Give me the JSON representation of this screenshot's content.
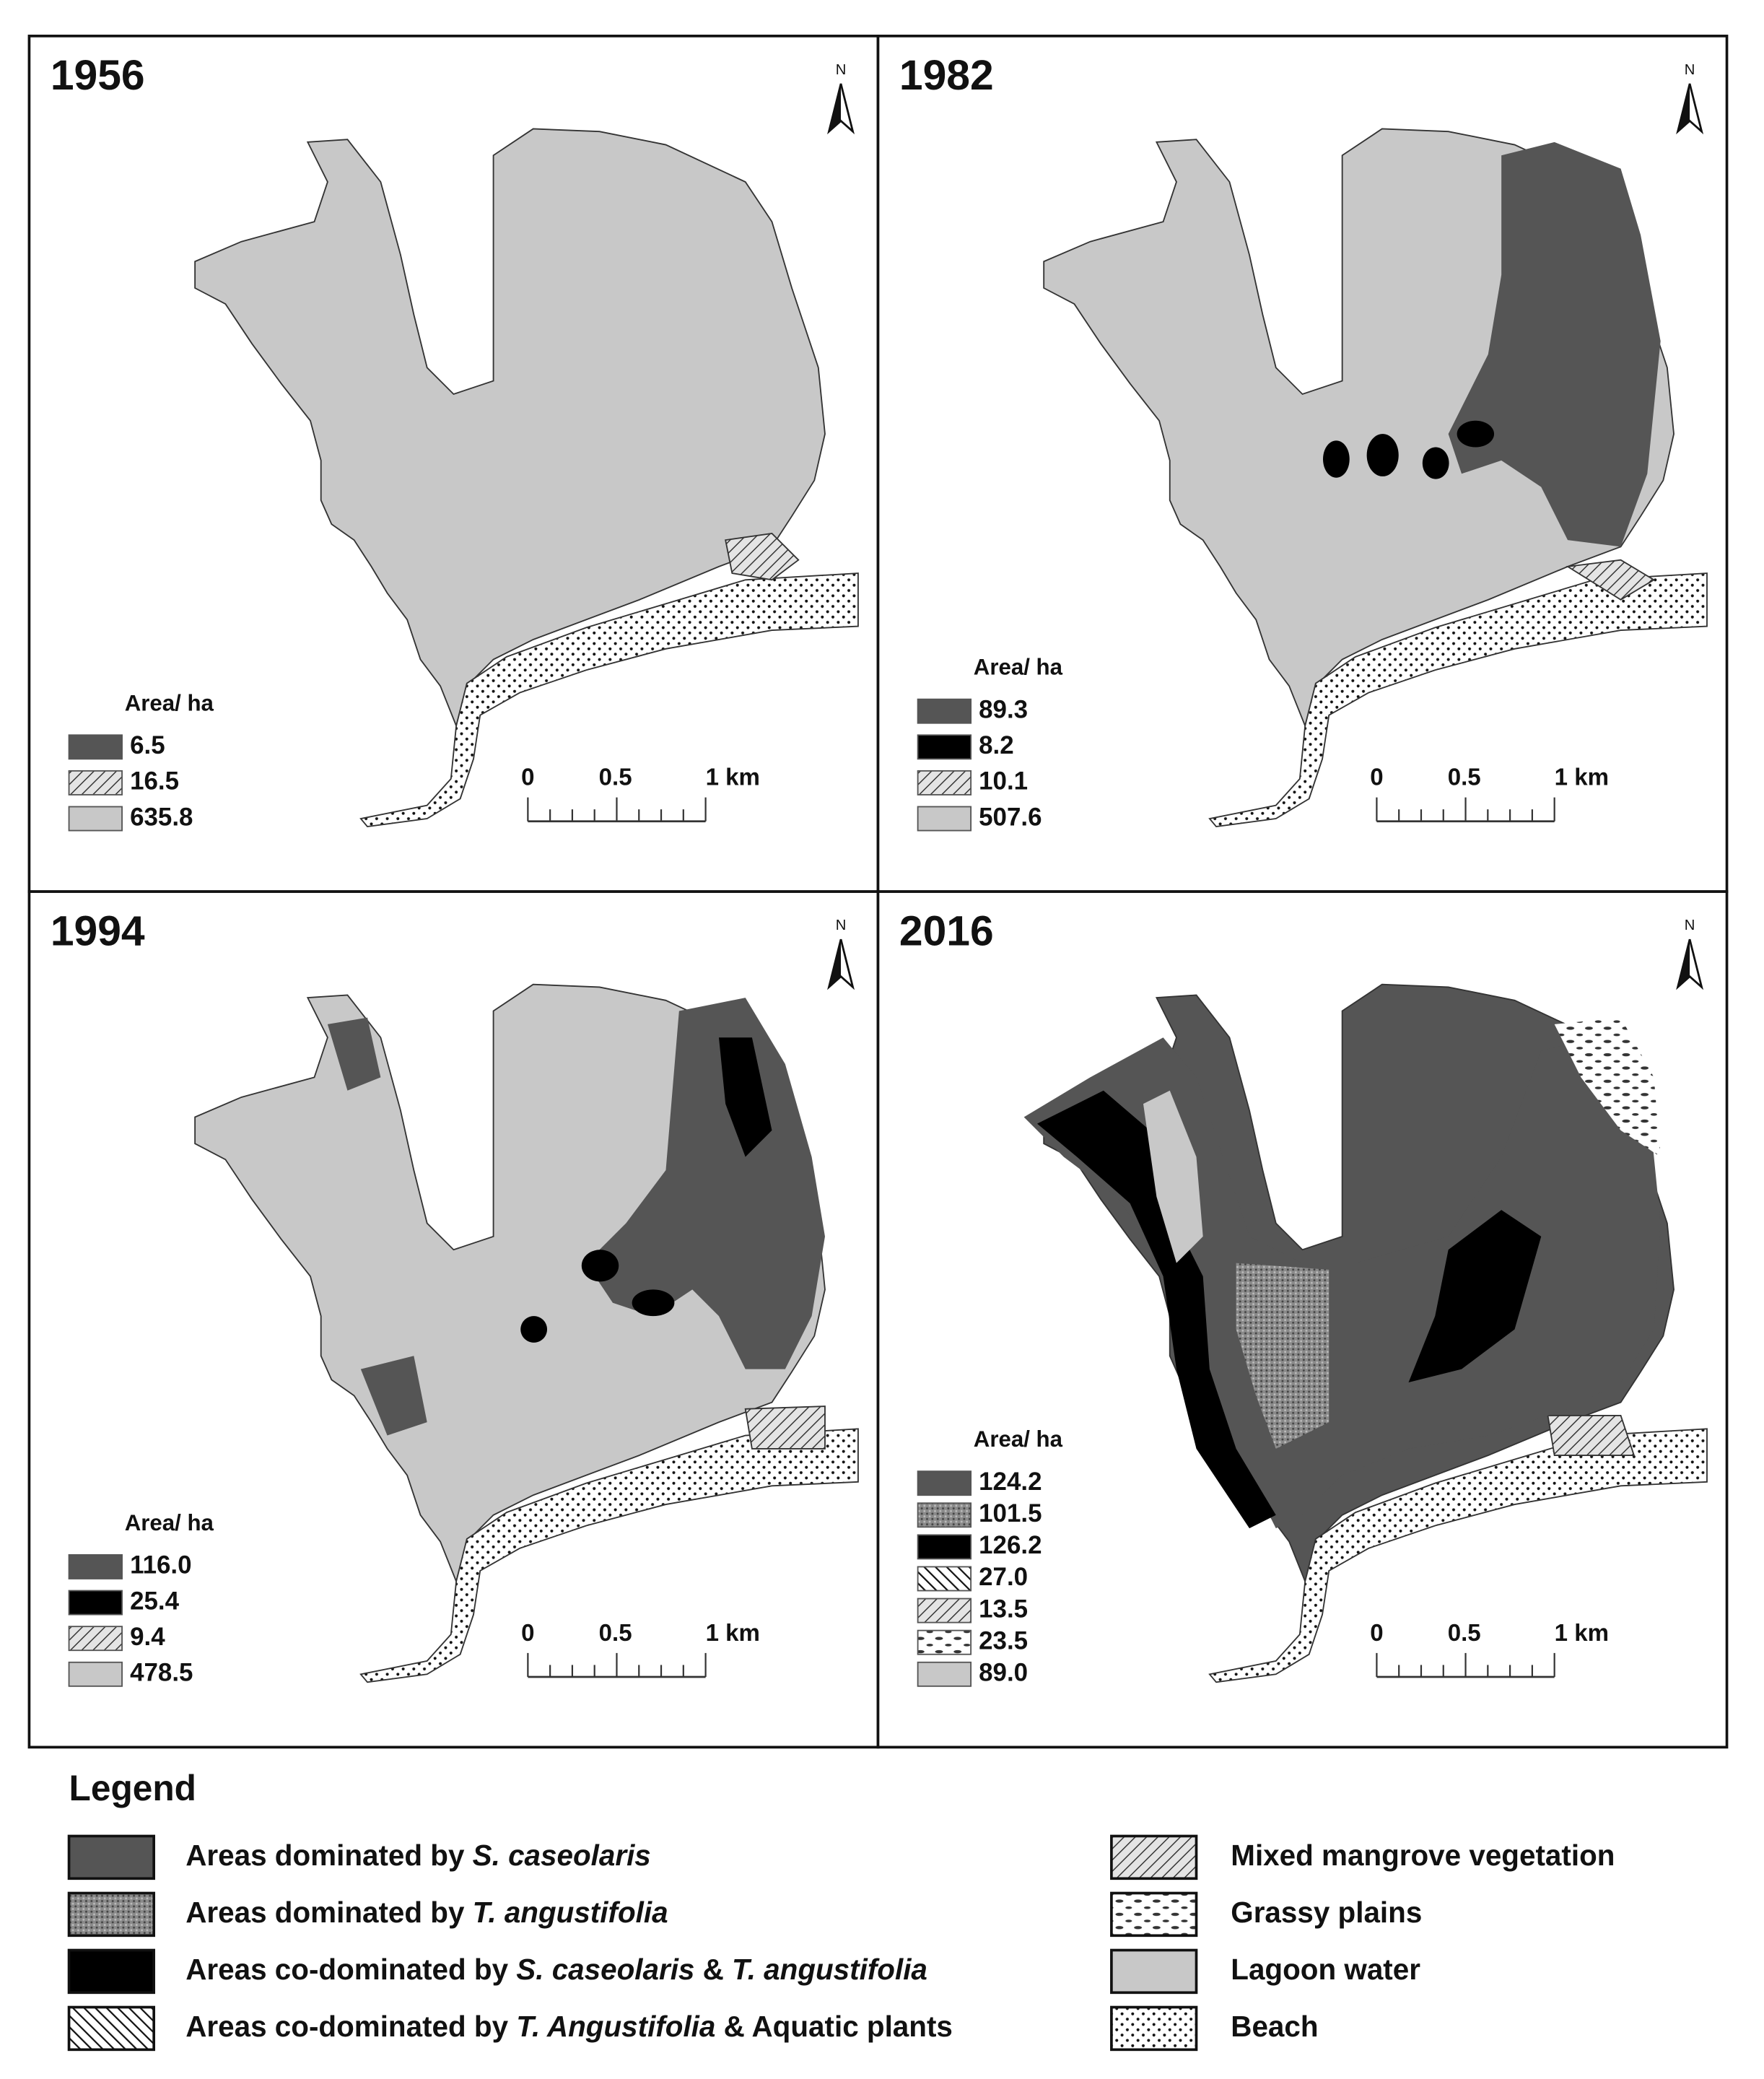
{
  "panels": [
    {
      "year": "1956",
      "area_title": "Area/ ha",
      "north": "N",
      "scale_labels": [
        "0",
        "0.5",
        "1 km"
      ],
      "entries": [
        {
          "value": "6.5",
          "color": "#555555"
        },
        {
          "value": "16.5",
          "color": "url(#p-hatch)"
        },
        {
          "value": "635.8",
          "color": "#c8c8c8"
        }
      ]
    },
    {
      "year": "1982",
      "area_title": "Area/ ha",
      "north": "N",
      "scale_labels": [
        "0",
        "0.5",
        "1 km"
      ],
      "entries": [
        {
          "value": "89.3",
          "color": "#555555"
        },
        {
          "value": "8.2",
          "color": "#000000"
        },
        {
          "value": "10.1",
          "color": "url(#p-hatch)"
        },
        {
          "value": "507.6",
          "color": "#c8c8c8"
        }
      ]
    },
    {
      "year": "1994",
      "area_title": "Area/ ha",
      "north": "N",
      "scale_labels": [
        "0",
        "0.5",
        "1 km"
      ],
      "entries": [
        {
          "value": "116.0",
          "color": "#555555"
        },
        {
          "value": "25.4",
          "color": "#000000"
        },
        {
          "value": "9.4",
          "color": "url(#p-hatch)"
        },
        {
          "value": "478.5",
          "color": "#c8c8c8"
        }
      ]
    },
    {
      "year": "2016",
      "area_title": "Area/ ha",
      "north": "N",
      "scale_labels": [
        "0",
        "0.5",
        "1 km"
      ],
      "entries": [
        {
          "value": "124.2",
          "color": "#555555"
        },
        {
          "value": "101.5",
          "color": "url(#p-stipple)"
        },
        {
          "value": "126.2",
          "color": "#000000"
        },
        {
          "value": "27.0",
          "color": "url(#p-cross)"
        },
        {
          "value": "13.5",
          "color": "url(#p-hatch)"
        },
        {
          "value": "23.5",
          "color": "url(#p-grass)"
        },
        {
          "value": "89.0",
          "color": "#c8c8c8"
        }
      ]
    }
  ],
  "legend": {
    "title": "Legend",
    "items": [
      {
        "color": "#555555",
        "parts": [
          {
            "text": "Areas dominated by "
          },
          {
            "text": "S. caseolaris",
            "italic": true
          }
        ]
      },
      {
        "color": "url(#p-stipple)",
        "parts": [
          {
            "text": "Areas dominated by "
          },
          {
            "text": "T. angustifolia",
            "italic": true
          }
        ]
      },
      {
        "color": "#000000",
        "parts": [
          {
            "text": "Areas co-dominated by "
          },
          {
            "text": "S. caseolaris",
            "italic": true
          },
          {
            "text": " & "
          },
          {
            "text": "T. angustifolia",
            "italic": true
          }
        ]
      },
      {
        "color": "url(#p-cross)",
        "parts": [
          {
            "text": "Areas co-dominated by "
          },
          {
            "text": "T. Angustifolia",
            "italic": true
          },
          {
            "text": " & Aquatic plants"
          }
        ]
      },
      {
        "color": "url(#p-hatch)",
        "parts": [
          {
            "text": "Mixed mangrove vegetation"
          }
        ]
      },
      {
        "color": "url(#p-grass)",
        "parts": [
          {
            "text": "Grassy plains"
          }
        ]
      },
      {
        "color": "#c8c8c8",
        "parts": [
          {
            "text": "Lagoon water"
          }
        ]
      },
      {
        "color": "url(#p-beach)",
        "parts": [
          {
            "text": "Beach"
          }
        ]
      }
    ]
  }
}
